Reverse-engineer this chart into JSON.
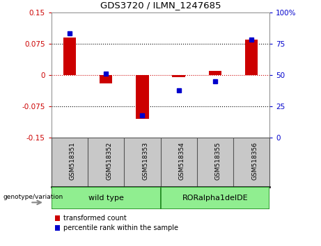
{
  "title": "GDS3720 / ILMN_1247685",
  "categories": [
    "GSM518351",
    "GSM518352",
    "GSM518353",
    "GSM518354",
    "GSM518355",
    "GSM518356"
  ],
  "red_bars": [
    0.09,
    -0.02,
    -0.105,
    -0.005,
    0.01,
    0.085
  ],
  "blue_dots_pct": [
    83,
    51,
    18,
    38,
    45,
    78
  ],
  "ylim_left": [
    -0.15,
    0.15
  ],
  "ylim_right": [
    0,
    100
  ],
  "yticks_left": [
    -0.15,
    -0.075,
    0,
    0.075,
    0.15
  ],
  "yticks_right": [
    0,
    25,
    50,
    75,
    100
  ],
  "hlines_black": [
    0.075,
    -0.075
  ],
  "hline_red": 0.0,
  "group1_label": "wild type",
  "group2_label": "RORalpha1delDE",
  "group1_indices": [
    0,
    1,
    2
  ],
  "group2_indices": [
    3,
    4,
    5
  ],
  "group_color": "#90EE90",
  "group_border_color": "#228B22",
  "bar_color": "#cc0000",
  "dot_color": "#0000cc",
  "legend_labels": [
    "transformed count",
    "percentile rank within the sample"
  ],
  "tick_area_color": "#c8c8c8",
  "bar_width": 0.35,
  "figsize": [
    4.61,
    3.54
  ],
  "dpi": 100
}
